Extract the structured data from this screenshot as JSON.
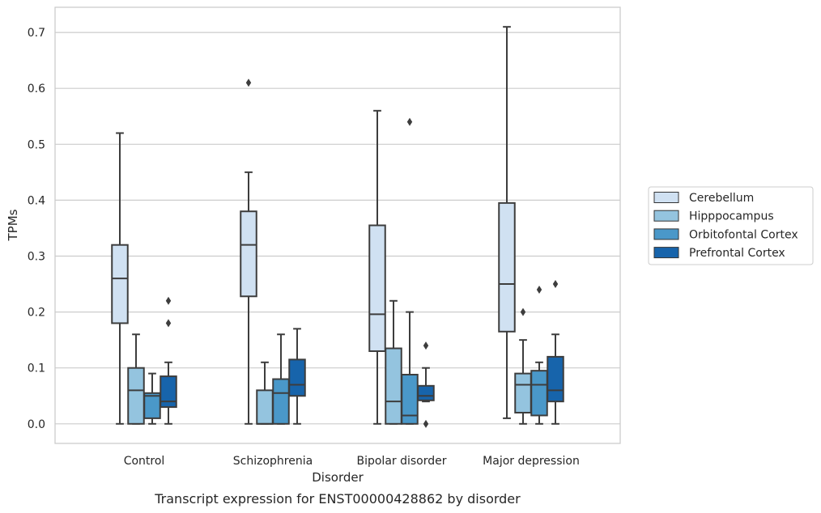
{
  "caption": "Transcript expression for ENST00000428862 by disorder",
  "chart_data": {
    "type": "box",
    "title": "",
    "xlabel": "Disorder",
    "ylabel": "TPMs",
    "ylim": [
      -0.035,
      0.745
    ],
    "yticks": [
      "0.0",
      "0.1",
      "0.2",
      "0.3",
      "0.4",
      "0.5",
      "0.6",
      "0.7"
    ],
    "grid": "horizontal",
    "legend_position": "right",
    "categories": [
      "Control",
      "Schizophrenia",
      "Bipolar disorder",
      "Major depression"
    ],
    "series": [
      {
        "name": "Cerebellum",
        "color": "#d0e1f2",
        "boxes": [
          {
            "whislo": 0.0,
            "q1": 0.18,
            "med": 0.26,
            "q3": 0.32,
            "whishi": 0.52,
            "fliers": []
          },
          {
            "whislo": 0.0,
            "q1": 0.228,
            "med": 0.32,
            "q3": 0.38,
            "whishi": 0.45,
            "fliers": [
              0.61
            ]
          },
          {
            "whislo": 0.0,
            "q1": 0.13,
            "med": 0.196,
            "q3": 0.355,
            "whishi": 0.56,
            "fliers": []
          },
          {
            "whislo": 0.01,
            "q1": 0.165,
            "med": 0.25,
            "q3": 0.395,
            "whishi": 0.71,
            "fliers": []
          }
        ]
      },
      {
        "name": "Hipppocampus",
        "color": "#94c4df",
        "boxes": [
          {
            "whislo": 0.0,
            "q1": 0.0,
            "med": 0.06,
            "q3": 0.1,
            "whishi": 0.16,
            "fliers": []
          },
          {
            "whislo": 0.0,
            "q1": 0.0,
            "med": 0.0,
            "q3": 0.06,
            "whishi": 0.11,
            "fliers": []
          },
          {
            "whislo": 0.0,
            "q1": 0.0,
            "med": 0.04,
            "q3": 0.135,
            "whishi": 0.22,
            "fliers": []
          },
          {
            "whislo": 0.0,
            "q1": 0.02,
            "med": 0.07,
            "q3": 0.09,
            "whishi": 0.15,
            "fliers": [
              0.2
            ]
          }
        ]
      },
      {
        "name": "Orbitofontal Cortex",
        "color": "#4a98c9",
        "boxes": [
          {
            "whislo": 0.0,
            "q1": 0.01,
            "med": 0.05,
            "q3": 0.055,
            "whishi": 0.09,
            "fliers": []
          },
          {
            "whislo": 0.0,
            "q1": 0.0,
            "med": 0.055,
            "q3": 0.08,
            "whishi": 0.16,
            "fliers": []
          },
          {
            "whislo": 0.0,
            "q1": 0.0,
            "med": 0.015,
            "q3": 0.088,
            "whishi": 0.2,
            "fliers": [
              0.54
            ]
          },
          {
            "whislo": 0.0,
            "q1": 0.015,
            "med": 0.07,
            "q3": 0.095,
            "whishi": 0.11,
            "fliers": [
              0.24
            ]
          }
        ]
      },
      {
        "name": "Prefrontal Cortex",
        "color": "#1764ab",
        "boxes": [
          {
            "whislo": 0.0,
            "q1": 0.03,
            "med": 0.04,
            "q3": 0.085,
            "whishi": 0.11,
            "fliers": [
              0.18,
              0.22
            ]
          },
          {
            "whislo": 0.0,
            "q1": 0.05,
            "med": 0.07,
            "q3": 0.115,
            "whishi": 0.17,
            "fliers": []
          },
          {
            "whislo": 0.04,
            "q1": 0.042,
            "med": 0.05,
            "q3": 0.068,
            "whishi": 0.1,
            "fliers": [
              0.14,
              0.0
            ]
          },
          {
            "whislo": 0.0,
            "q1": 0.04,
            "med": 0.06,
            "q3": 0.12,
            "whishi": 0.16,
            "fliers": [
              0.25
            ]
          }
        ]
      }
    ]
  }
}
